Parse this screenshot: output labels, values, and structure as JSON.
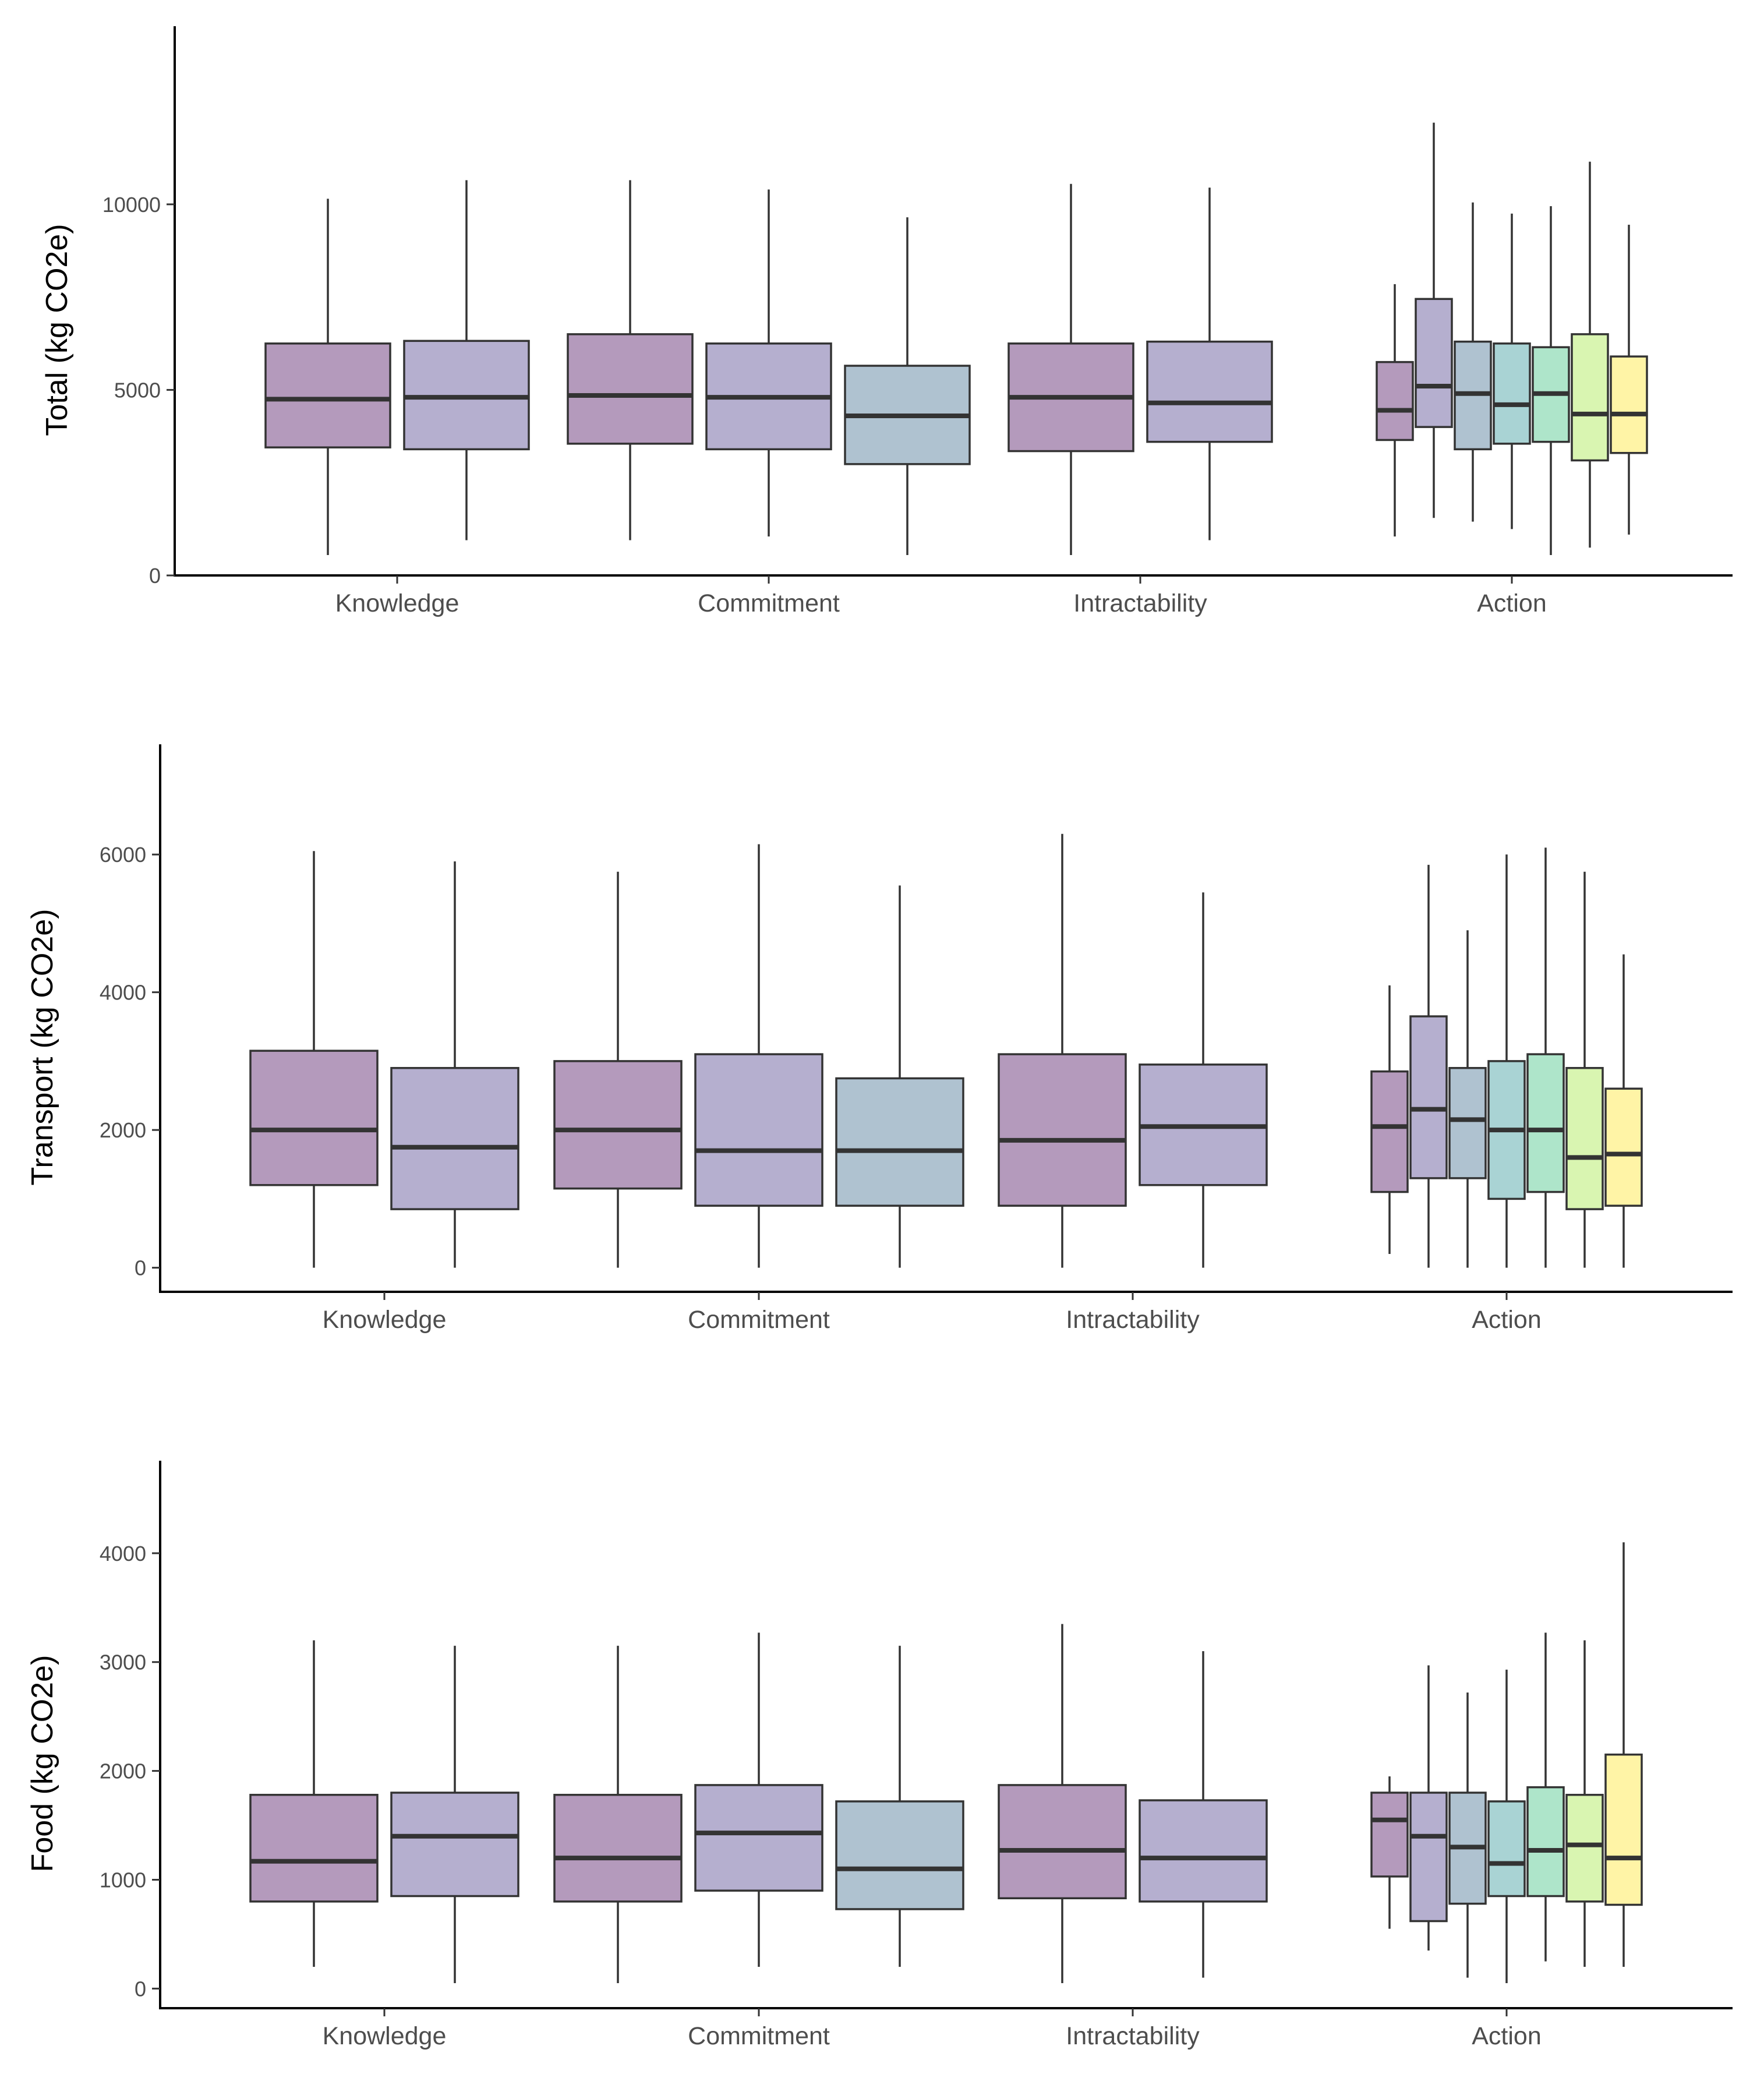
{
  "chart_data": [
    {
      "type": "boxplot",
      "ylabel": "Total (kg CO2e)",
      "ylim": [
        0,
        14800
      ],
      "yticks": [
        0,
        5000,
        10000
      ],
      "categories": [
        "Knowledge",
        "Commitment",
        "Intractability",
        "Action"
      ],
      "groups": [
        {
          "category": "Knowledge",
          "boxes": [
            {
              "fill": "#B49ABC",
              "min": 550,
              "q1": 3450,
              "median": 4750,
              "q3": 6250,
              "max": 10150
            },
            {
              "fill": "#B5AFCF",
              "min": 950,
              "q1": 3400,
              "median": 4800,
              "q3": 6320,
              "max": 10650
            }
          ]
        },
        {
          "category": "Commitment",
          "boxes": [
            {
              "fill": "#B49ABC",
              "min": 950,
              "q1": 3550,
              "median": 4850,
              "q3": 6500,
              "max": 10650
            },
            {
              "fill": "#B5AFCF",
              "min": 1050,
              "q1": 3400,
              "median": 4800,
              "q3": 6250,
              "max": 10400
            },
            {
              "fill": "#AFC2D0",
              "min": 550,
              "q1": 3000,
              "median": 4300,
              "q3": 5650,
              "max": 9650
            }
          ]
        },
        {
          "category": "Intractability",
          "boxes": [
            {
              "fill": "#B49ABC",
              "min": 550,
              "q1": 3350,
              "median": 4800,
              "q3": 6250,
              "max": 10550
            },
            {
              "fill": "#B5AFCF",
              "min": 950,
              "q1": 3600,
              "median": 4650,
              "q3": 6300,
              "max": 10450
            }
          ]
        },
        {
          "category": "Action",
          "boxes": [
            {
              "fill": "#B49ABC",
              "min": 1050,
              "q1": 3650,
              "median": 4450,
              "q3": 5750,
              "max": 7850
            },
            {
              "fill": "#B5AFCF",
              "min": 1550,
              "q1": 4000,
              "median": 5100,
              "q3": 7450,
              "max": 12200
            },
            {
              "fill": "#AFC2D0",
              "min": 1450,
              "q1": 3400,
              "median": 4900,
              "q3": 6300,
              "max": 10050
            },
            {
              "fill": "#A9D3D4",
              "min": 1250,
              "q1": 3550,
              "median": 4600,
              "q3": 6250,
              "max": 9750
            },
            {
              "fill": "#AEE5CA",
              "min": 550,
              "q1": 3600,
              "median": 4900,
              "q3": 6150,
              "max": 9950
            },
            {
              "fill": "#D9F5B1",
              "min": 750,
              "q1": 3100,
              "median": 4350,
              "q3": 6500,
              "max": 11150
            },
            {
              "fill": "#FFF4A6",
              "min": 1100,
              "q1": 3300,
              "median": 4350,
              "q3": 5900,
              "max": 9450
            }
          ]
        }
      ]
    },
    {
      "type": "boxplot",
      "ylabel": "Transport (kg CO2e)",
      "ylim": [
        -350,
        7600
      ],
      "yticks": [
        0,
        2000,
        4000,
        6000
      ],
      "categories": [
        "Knowledge",
        "Commitment",
        "Intractability",
        "Action"
      ],
      "groups": [
        {
          "category": "Knowledge",
          "boxes": [
            {
              "fill": "#B49ABC",
              "min": 0,
              "q1": 1200,
              "median": 2000,
              "q3": 3150,
              "max": 6050
            },
            {
              "fill": "#B5AFCF",
              "min": 0,
              "q1": 850,
              "median": 1750,
              "q3": 2900,
              "max": 5900
            }
          ]
        },
        {
          "category": "Commitment",
          "boxes": [
            {
              "fill": "#B49ABC",
              "min": 0,
              "q1": 1150,
              "median": 2000,
              "q3": 3000,
              "max": 5750
            },
            {
              "fill": "#B5AFCF",
              "min": 0,
              "q1": 900,
              "median": 1700,
              "q3": 3100,
              "max": 6150
            },
            {
              "fill": "#AFC2D0",
              "min": 0,
              "q1": 900,
              "median": 1700,
              "q3": 2750,
              "max": 5550
            }
          ]
        },
        {
          "category": "Intractability",
          "boxes": [
            {
              "fill": "#B49ABC",
              "min": 0,
              "q1": 900,
              "median": 1850,
              "q3": 3100,
              "max": 6300
            },
            {
              "fill": "#B5AFCF",
              "min": 0,
              "q1": 1200,
              "median": 2050,
              "q3": 2950,
              "max": 5450
            }
          ]
        },
        {
          "category": "Action",
          "boxes": [
            {
              "fill": "#B49ABC",
              "min": 200,
              "q1": 1100,
              "median": 2050,
              "q3": 2850,
              "max": 4100
            },
            {
              "fill": "#B5AFCF",
              "min": 0,
              "q1": 1300,
              "median": 2300,
              "q3": 3650,
              "max": 5850
            },
            {
              "fill": "#AFC2D0",
              "min": 0,
              "q1": 1300,
              "median": 2150,
              "q3": 2900,
              "max": 4900
            },
            {
              "fill": "#A9D3D4",
              "min": 0,
              "q1": 1000,
              "median": 2000,
              "q3": 3000,
              "max": 6000
            },
            {
              "fill": "#AEE5CA",
              "min": 0,
              "q1": 1100,
              "median": 2000,
              "q3": 3100,
              "max": 6100
            },
            {
              "fill": "#D9F5B1",
              "min": 0,
              "q1": 850,
              "median": 1600,
              "q3": 2900,
              "max": 5750
            },
            {
              "fill": "#FFF4A6",
              "min": 0,
              "q1": 900,
              "median": 1650,
              "q3": 2600,
              "max": 4550
            }
          ]
        }
      ]
    },
    {
      "type": "boxplot",
      "ylabel": "Food (kg CO2e)",
      "ylim": [
        -180,
        4850
      ],
      "yticks": [
        0,
        1000,
        2000,
        3000,
        4000
      ],
      "categories": [
        "Knowledge",
        "Commitment",
        "Intractability",
        "Action"
      ],
      "groups": [
        {
          "category": "Knowledge",
          "boxes": [
            {
              "fill": "#B49ABC",
              "min": 200,
              "q1": 800,
              "median": 1170,
              "q3": 1780,
              "max": 3200
            },
            {
              "fill": "#B5AFCF",
              "min": 50,
              "q1": 850,
              "median": 1400,
              "q3": 1800,
              "max": 3150
            }
          ]
        },
        {
          "category": "Commitment",
          "boxes": [
            {
              "fill": "#B49ABC",
              "min": 50,
              "q1": 800,
              "median": 1200,
              "q3": 1780,
              "max": 3150
            },
            {
              "fill": "#B5AFCF",
              "min": 200,
              "q1": 900,
              "median": 1430,
              "q3": 1870,
              "max": 3270
            },
            {
              "fill": "#AFC2D0",
              "min": 200,
              "q1": 730,
              "median": 1100,
              "q3": 1720,
              "max": 3150
            }
          ]
        },
        {
          "category": "Intractability",
          "boxes": [
            {
              "fill": "#B49ABC",
              "min": 50,
              "q1": 830,
              "median": 1270,
              "q3": 1870,
              "max": 3350
            },
            {
              "fill": "#B5AFCF",
              "min": 100,
              "q1": 800,
              "median": 1200,
              "q3": 1730,
              "max": 3100
            }
          ]
        },
        {
          "category": "Action",
          "boxes": [
            {
              "fill": "#B49ABC",
              "min": 550,
              "q1": 1030,
              "median": 1550,
              "q3": 1800,
              "max": 1950
            },
            {
              "fill": "#B5AFCF",
              "min": 350,
              "q1": 620,
              "median": 1400,
              "q3": 1800,
              "max": 2970
            },
            {
              "fill": "#AFC2D0",
              "min": 100,
              "q1": 780,
              "median": 1300,
              "q3": 1800,
              "max": 2720
            },
            {
              "fill": "#A9D3D4",
              "min": 50,
              "q1": 850,
              "median": 1150,
              "q3": 1720,
              "max": 2930
            },
            {
              "fill": "#AEE5CA",
              "min": 250,
              "q1": 850,
              "median": 1270,
              "q3": 1850,
              "max": 3270
            },
            {
              "fill": "#D9F5B1",
              "min": 200,
              "q1": 800,
              "median": 1320,
              "q3": 1780,
              "max": 3200
            },
            {
              "fill": "#FFF4A6",
              "min": 200,
              "q1": 770,
              "median": 1200,
              "q3": 2150,
              "max": 4100
            }
          ]
        }
      ]
    }
  ]
}
